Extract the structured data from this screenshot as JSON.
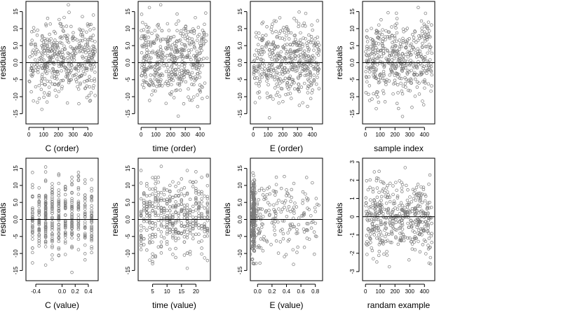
{
  "figure": {
    "panels": [
      {
        "id": "p1",
        "xlabel": "C (order)",
        "ylabel": "residuals"
      },
      {
        "id": "p2",
        "xlabel": "time (order)",
        "ylabel": "residuals"
      },
      {
        "id": "p3",
        "xlabel": "E (order)",
        "ylabel": "residuals"
      },
      {
        "id": "p4",
        "xlabel": "sample index",
        "ylabel": "residuals"
      },
      {
        "id": "p5",
        "xlabel": "C (value)",
        "ylabel": "residuals"
      },
      {
        "id": "p6",
        "xlabel": "time (value)",
        "ylabel": "residuals"
      },
      {
        "id": "p7",
        "xlabel": "E (value)",
        "ylabel": "residuals"
      },
      {
        "id": "p8",
        "xlabel": "randam example",
        "ylabel": "residuals"
      }
    ]
  },
  "chart_data": [
    {
      "type": "scatter",
      "xlabel": "C (order)",
      "ylabel": "residuals",
      "xlim": [
        -20,
        470
      ],
      "ylim": [
        -18,
        18
      ],
      "xticks": [
        0,
        100,
        200,
        300,
        400
      ],
      "xticklabels": [
        "0",
        "100",
        "200",
        "300",
        "400"
      ],
      "yticks": [
        -15,
        -10,
        -5,
        0,
        5,
        10,
        15
      ],
      "yticklabels": [
        "-15",
        "-10",
        "-5",
        "0.0",
        "5.0",
        "10",
        "15"
      ],
      "hline": 0,
      "n_points": 450,
      "x_range": [
        0,
        450
      ],
      "y_range": [
        -17,
        17
      ],
      "seed": 11
    },
    {
      "type": "scatter",
      "xlabel": "time (order)",
      "ylabel": "residuals",
      "xlim": [
        -20,
        470
      ],
      "ylim": [
        -18,
        18
      ],
      "xticks": [
        0,
        100,
        200,
        300,
        400
      ],
      "xticklabels": [
        "0",
        "100",
        "200",
        "300",
        "400"
      ],
      "yticks": [
        -15,
        -10,
        -5,
        0,
        5,
        10,
        15
      ],
      "yticklabels": [
        "-15",
        "-10",
        "-5",
        "0.0",
        "5.0",
        "10",
        "15"
      ],
      "hline": 0,
      "n_points": 450,
      "x_range": [
        0,
        450
      ],
      "y_range": [
        -17,
        17
      ],
      "seed": 23
    },
    {
      "type": "scatter",
      "xlabel": "E (order)",
      "ylabel": "residuals",
      "xlim": [
        -20,
        470
      ],
      "ylim": [
        -18,
        18
      ],
      "xticks": [
        0,
        100,
        200,
        300,
        400
      ],
      "xticklabels": [
        "0",
        "100",
        "200",
        "300",
        "400"
      ],
      "yticks": [
        -15,
        -10,
        -5,
        0,
        5,
        10,
        15
      ],
      "yticklabels": [
        "-15",
        "-10",
        "-5",
        "0.0",
        "5.0",
        "10",
        "15"
      ],
      "hline": 0,
      "n_points": 450,
      "x_range": [
        0,
        450
      ],
      "y_range": [
        -17,
        17
      ],
      "seed": 37
    },
    {
      "type": "scatter",
      "xlabel": "sample index",
      "ylabel": "residuals",
      "xlim": [
        -20,
        470
      ],
      "ylim": [
        -18,
        18
      ],
      "xticks": [
        0,
        100,
        200,
        300,
        400
      ],
      "xticklabels": [
        "0",
        "100",
        "200",
        "300",
        "400"
      ],
      "yticks": [
        -15,
        -10,
        -5,
        0,
        5,
        10,
        15
      ],
      "yticklabels": [
        "-15",
        "-10",
        "-5",
        "0.0",
        "5.0",
        "10",
        "15"
      ],
      "hline": 0,
      "n_points": 450,
      "x_range": [
        0,
        450
      ],
      "y_range": [
        -17,
        17
      ],
      "seed": 41
    },
    {
      "type": "scatter",
      "xlabel": "C (value)",
      "ylabel": "residuals",
      "xlim": [
        -0.55,
        0.55
      ],
      "ylim": [
        -18,
        18
      ],
      "xticks": [
        -0.4,
        0.0,
        0.2,
        0.4
      ],
      "xticklabels": [
        "-0.4",
        "0.0",
        "0.2",
        "0.4"
      ],
      "yticks": [
        -15,
        -10,
        -5,
        0,
        5,
        10,
        15
      ],
      "yticklabels": [
        "-15",
        "-10",
        "-5",
        "0.0",
        "5.0",
        "10",
        "15"
      ],
      "hline": 0,
      "n_points": 420,
      "x_range": [
        -0.5,
        0.5
      ],
      "y_range": [
        -17,
        17
      ],
      "seed": 53,
      "x_columns": [
        -0.45,
        -0.35,
        -0.25,
        -0.15,
        -0.05,
        0.05,
        0.15,
        0.25,
        0.35,
        0.45
      ]
    },
    {
      "type": "scatter",
      "xlabel": "time (value)",
      "ylabel": "residuals",
      "xlim": [
        0,
        25
      ],
      "ylim": [
        -18,
        18
      ],
      "xticks": [
        5,
        10,
        15,
        20
      ],
      "xticklabels": [
        "5",
        "10",
        "15",
        "20"
      ],
      "yticks": [
        -15,
        -10,
        -5,
        0,
        5,
        10,
        15
      ],
      "yticklabels": [
        "-15",
        "-10",
        "-5",
        "0.0",
        "5.0",
        "10",
        "15"
      ],
      "hline": 0,
      "n_points": 420,
      "x_range": [
        1,
        24
      ],
      "y_range": [
        -17,
        17
      ],
      "seed": 61,
      "x_columns": [
        1,
        2,
        3,
        4,
        5,
        6,
        7,
        8,
        9,
        10,
        11,
        12,
        13,
        14,
        15,
        16,
        17,
        18,
        19,
        20,
        21,
        22,
        23,
        24
      ]
    },
    {
      "type": "scatter",
      "xlabel": "E (value)",
      "ylabel": "residuals",
      "xlim": [
        -0.1,
        0.9
      ],
      "ylim": [
        -18,
        18
      ],
      "xticks": [
        0.0,
        0.2,
        0.4,
        0.6,
        0.8
      ],
      "xticklabels": [
        "0.0",
        "0.2",
        "0.4",
        "0.6",
        "0.8"
      ],
      "yticks": [
        -15,
        -10,
        -5,
        0,
        5,
        10,
        15
      ],
      "yticklabels": [
        "-15",
        "-10",
        "-5",
        "0.0",
        "5.0",
        "10",
        "15"
      ],
      "hline": 0,
      "n_points": 420,
      "x_range": [
        -0.1,
        0.85
      ],
      "y_range": [
        -17,
        17
      ],
      "seed": 71
    },
    {
      "type": "scatter",
      "xlabel": "randam example",
      "ylabel": "residuals",
      "xlim": [
        -20,
        470
      ],
      "ylim": [
        -3.5,
        3.2
      ],
      "xticks": [
        0,
        100,
        200,
        300,
        400
      ],
      "xticklabels": [
        "0",
        "100",
        "200",
        "300",
        "400"
      ],
      "yticks": [
        -3,
        -2,
        -1,
        0,
        1,
        2,
        3
      ],
      "yticklabels": [
        "-3",
        "-2",
        "-1",
        "0",
        "1",
        "2",
        "3"
      ],
      "hline": 0,
      "n_points": 450,
      "x_range": [
        0,
        450
      ],
      "y_range": [
        -3.1,
        2.9
      ],
      "seed": 83
    }
  ]
}
